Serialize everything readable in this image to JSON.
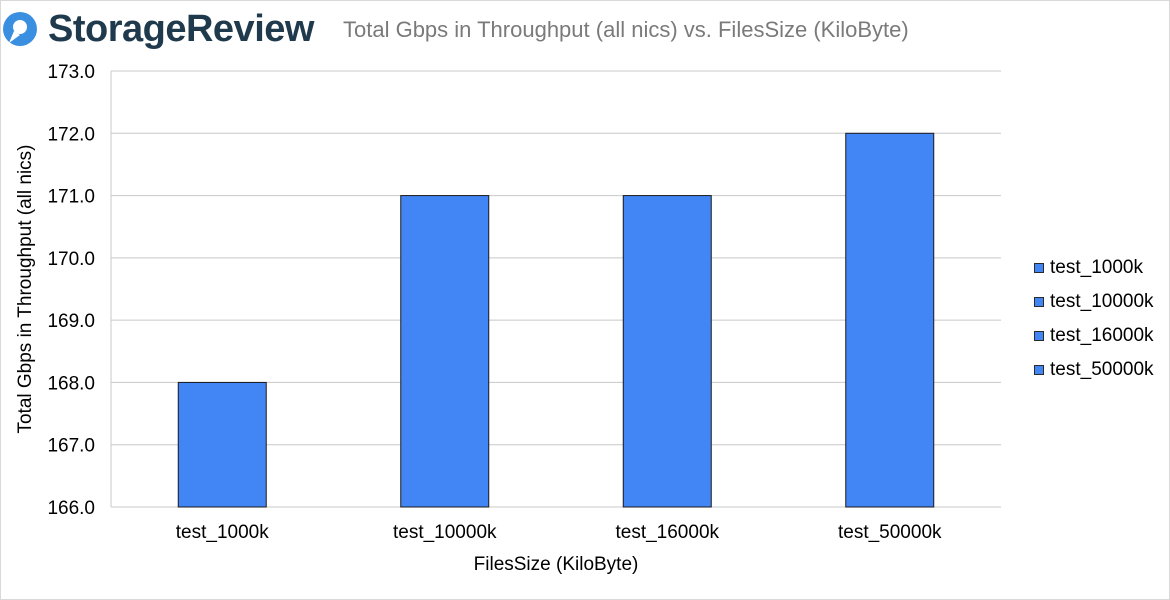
{
  "header": {
    "brand": "StorageReview",
    "logo_icon": "storagereview-logo-icon"
  },
  "chart_data": {
    "type": "bar",
    "title": "Total Gbps in Throughput (all nics) vs. FilesSize (KiloByte)",
    "xlabel": "FilesSize (KiloByte)",
    "ylabel": "Total Gbps in Throughput  (all nics)",
    "categories": [
      "test_1000k",
      "test_10000k",
      "test_16000k",
      "test_50000k"
    ],
    "values": [
      168.0,
      171.0,
      171.0,
      172.0
    ],
    "ylim": [
      166.0,
      173.0
    ],
    "yticks": [
      166.0,
      167.0,
      168.0,
      169.0,
      170.0,
      171.0,
      172.0,
      173.0
    ],
    "ytick_decimals": 1,
    "grid": true,
    "legend": {
      "position": "right",
      "entries": [
        "test_1000k",
        "test_10000k",
        "test_16000k",
        "test_50000k"
      ]
    },
    "bar_color": "#4285f4",
    "bar_edge_color": "#1a1a1a"
  }
}
